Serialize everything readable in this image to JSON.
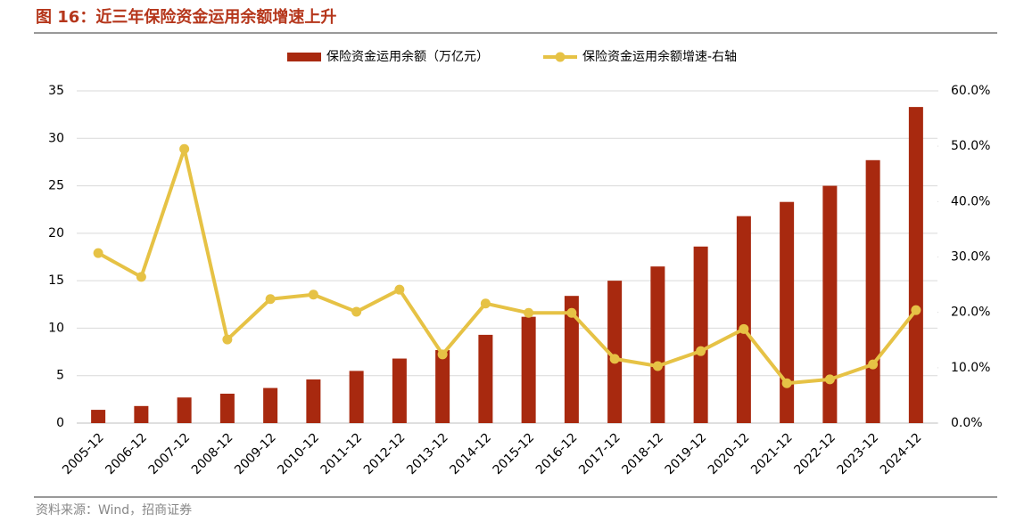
{
  "chart_data": {
    "type": "bar",
    "title": "图 16：近三年保险资金运用余额增速上升",
    "source": "资料来源：Wind，招商证券",
    "categories": [
      "2005-12",
      "2006-12",
      "2007-12",
      "2008-12",
      "2009-12",
      "2010-12",
      "2011-12",
      "2012-12",
      "2013-12",
      "2014-12",
      "2015-12",
      "2016-12",
      "2017-12",
      "2018-12",
      "2019-12",
      "2020-12",
      "2021-12",
      "2022-12",
      "2023-12",
      "2024-12"
    ],
    "series": [
      {
        "name": "保险资金运用余额（万亿元）",
        "type": "bar",
        "color": "#a8290f",
        "values": [
          1.4,
          1.8,
          2.7,
          3.1,
          3.7,
          4.6,
          5.5,
          6.8,
          7.7,
          9.3,
          11.2,
          13.4,
          15.0,
          16.5,
          18.6,
          21.8,
          23.3,
          25.0,
          27.7,
          33.3
        ]
      },
      {
        "name": "保险资金运用余额增速-右轴",
        "type": "line",
        "axis": "y2",
        "color": "#e6c245",
        "values": [
          30.7,
          26.4,
          49.5,
          15.1,
          22.4,
          23.2,
          20.1,
          24.1,
          12.4,
          21.6,
          19.9,
          19.9,
          11.6,
          10.3,
          13.0,
          17.0,
          7.2,
          7.9,
          10.6,
          20.4
        ]
      }
    ],
    "ylim": [
      0,
      35
    ],
    "yticks": [
      0,
      5,
      10,
      15,
      20,
      25,
      30,
      35
    ],
    "y2lim": [
      0,
      60
    ],
    "y2ticks": [
      {
        "value": 0,
        "label": "0.0%"
      },
      {
        "value": 10,
        "label": "10.0%"
      },
      {
        "value": 20,
        "label": "20.0%"
      },
      {
        "value": 30,
        "label": "30.0%"
      },
      {
        "value": 40,
        "label": "40.0%"
      },
      {
        "value": 50,
        "label": "50.0%"
      },
      {
        "value": 60,
        "label": "60.0%"
      }
    ],
    "grid": true,
    "legend": "top"
  }
}
